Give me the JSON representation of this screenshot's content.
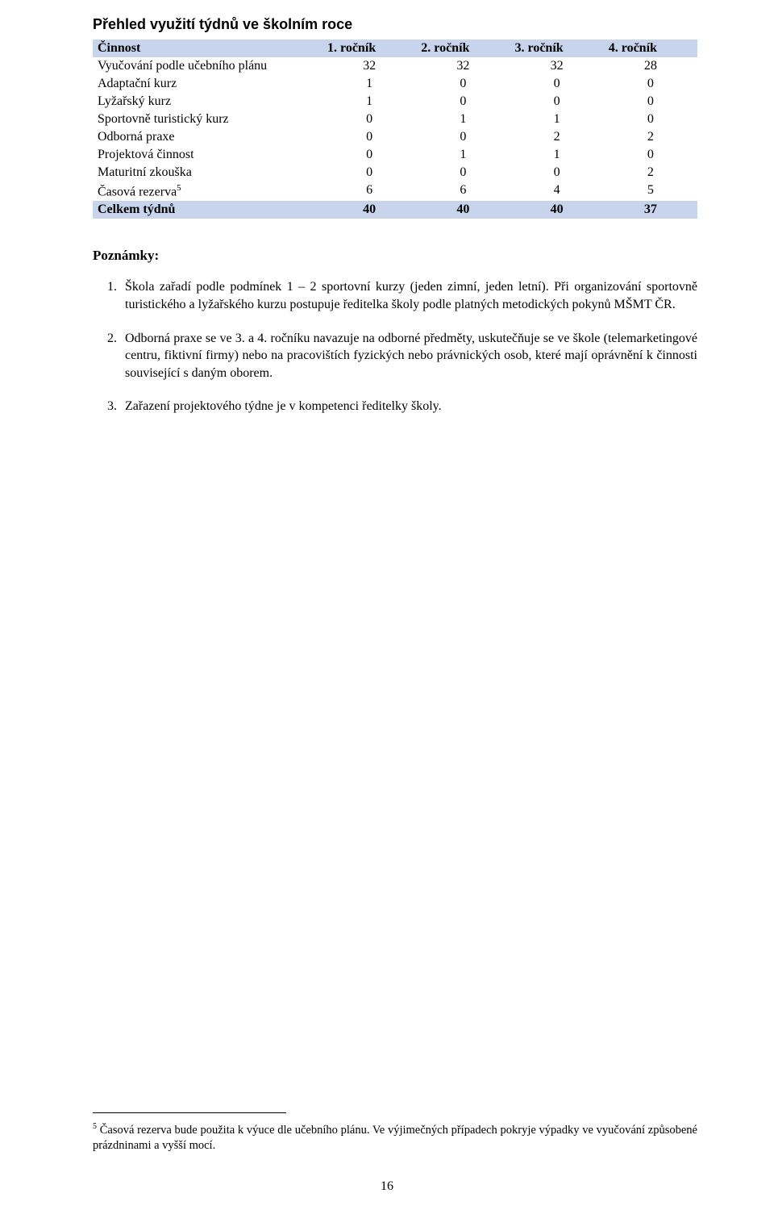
{
  "section_title": "Přehled využití týdnů ve školním roce",
  "table": {
    "header_label": "Činnost",
    "columns": [
      "1. ročník",
      "2. ročník",
      "3. ročník",
      "4. ročník"
    ],
    "rows": [
      {
        "label": "Vyučování podle učebního plánu",
        "values": [
          "32",
          "32",
          "32",
          "28"
        ],
        "multiline": true
      },
      {
        "label": "Adaptační kurz",
        "values": [
          "1",
          "0",
          "0",
          "0"
        ]
      },
      {
        "label": "Lyžařský kurz",
        "values": [
          "1",
          "0",
          "0",
          "0"
        ]
      },
      {
        "label": "Sportovně turistický kurz",
        "values": [
          "0",
          "1",
          "1",
          "0"
        ]
      },
      {
        "label": "Odborná praxe",
        "values": [
          "0",
          "0",
          "2",
          "2"
        ]
      },
      {
        "label": "Projektová činnost",
        "values": [
          "0",
          "1",
          "1",
          "0"
        ]
      },
      {
        "label": "Maturitní zkouška",
        "values": [
          "0",
          "0",
          "0",
          "2"
        ]
      },
      {
        "label": "Časová rezerva",
        "sup": "5",
        "values": [
          "6",
          "6",
          "4",
          "5"
        ]
      }
    ],
    "total": {
      "label": "Celkem týdnů",
      "values": [
        "40",
        "40",
        "40",
        "37"
      ]
    }
  },
  "poznamky_label": "Poznámky:",
  "notes": [
    "Škola zařadí podle podmínek 1 – 2 sportovní kurzy (jeden zimní, jeden letní). Při organizování sportovně turistického a lyžařského kurzu postupuje ředitelka školy podle platných metodických pokynů MŠMT ČR.",
    "Odborná praxe se ve 3. a 4. ročníku navazuje na odborné předměty, uskutečňuje se ve škole (telemarketingové centru, fiktivní firmy) nebo na pracovištích fyzických nebo právnických osob, které mají oprávnění k činnosti související s daným oborem.",
    "Zařazení projektového týdne je v kompetenci ředitelky školy."
  ],
  "footnote": {
    "num": "5",
    "text": " Časová rezerva bude použita k výuce dle učebního plánu. Ve výjimečných případech pokryje výpadky ve vyučování způsobené prázdninami a vyšší mocí."
  },
  "page_number": "16",
  "colors": {
    "highlight": "#c7d4ec"
  }
}
